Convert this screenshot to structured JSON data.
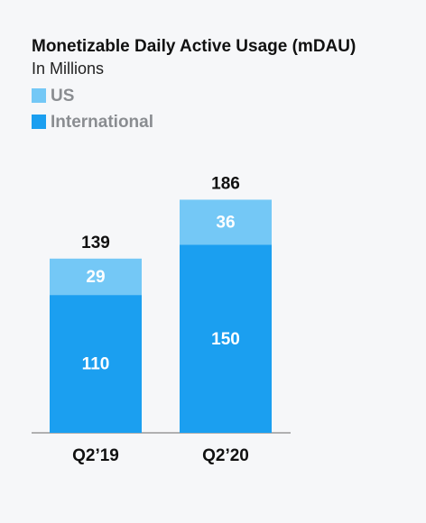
{
  "chart_data": {
    "type": "stacked_bar",
    "title": "Monetizable Daily Active Usage (mDAU)",
    "subtitle": "In Millions",
    "categories": [
      "Q2’19",
      "Q2’20"
    ],
    "series": [
      {
        "name": "International",
        "color": "#1b9ff0",
        "values": [
          110,
          150
        ]
      },
      {
        "name": "US",
        "color": "#74c8f6",
        "values": [
          29,
          36
        ]
      }
    ],
    "totals": [
      139,
      186
    ],
    "ylim": [
      0,
      200
    ]
  }
}
